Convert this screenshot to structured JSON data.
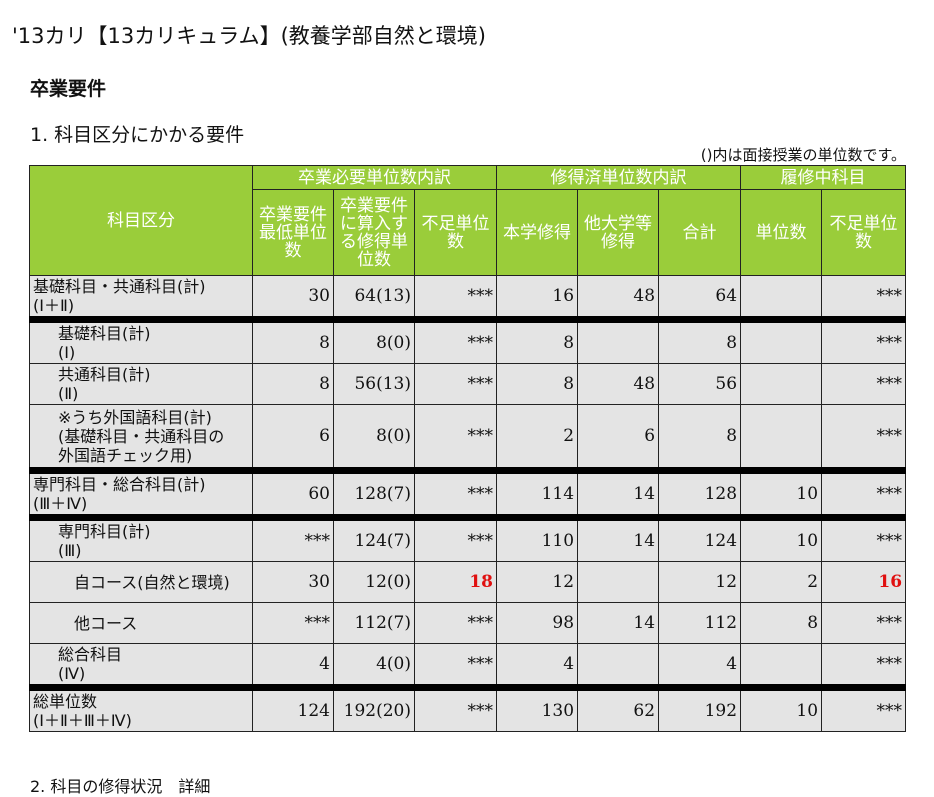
{
  "page": {
    "title": "'13カリ【13カリキュラム】(教養学部自然と環境)",
    "section_heading": "卒業要件",
    "subsection_heading": "1. 科目区分にかかる要件",
    "note": "()内は面接授業の単位数です。",
    "footer_cut": "2. 科目の修得状況　詳細"
  },
  "table": {
    "headers": {
      "category": "科目区分",
      "group_required": "卒業必要単位数内訳",
      "group_earned": "修得済単位数内訳",
      "group_current": "履修中科目",
      "min_units": "卒業要件最低単位数",
      "countable": "卒業要件に算入する修得単位数",
      "shortage": "不足単位数",
      "own_univ": "本学修得",
      "other_univ": "他大学等修得",
      "total": "合計",
      "units": "単位数",
      "shortage2": "不足単位数"
    },
    "rows": [
      {
        "label": "基礎科目・共通科目(計)\n(Ⅰ＋Ⅱ)",
        "min": "30",
        "count": "64(13)",
        "short": "***",
        "own": "16",
        "other": "48",
        "total": "64",
        "cur": "",
        "cur_short": "***"
      },
      {
        "label": "基礎科目(計)\n(Ⅰ)",
        "min": "8",
        "count": "8(0)",
        "short": "***",
        "own": "8",
        "other": "",
        "total": "8",
        "cur": "",
        "cur_short": "***"
      },
      {
        "label": "共通科目(計)\n(Ⅱ)",
        "min": "8",
        "count": "56(13)",
        "short": "***",
        "own": "8",
        "other": "48",
        "total": "56",
        "cur": "",
        "cur_short": "***"
      },
      {
        "label": "※うち外国語科目(計)\n(基礎科目・共通科目の\n外国語チェック用)",
        "min": "6",
        "count": "8(0)",
        "short": "***",
        "own": "2",
        "other": "6",
        "total": "8",
        "cur": "",
        "cur_short": "***"
      },
      {
        "label": "専門科目・総合科目(計)\n(Ⅲ＋Ⅳ)",
        "min": "60",
        "count": "128(7)",
        "short": "***",
        "own": "114",
        "other": "14",
        "total": "128",
        "cur": "10",
        "cur_short": "***"
      },
      {
        "label": "専門科目(計)\n(Ⅲ)",
        "min": "***",
        "count": "124(7)",
        "short": "***",
        "own": "110",
        "other": "14",
        "total": "124",
        "cur": "10",
        "cur_short": "***"
      },
      {
        "label": "自コース(自然と環境)",
        "min": "30",
        "count": "12(0)",
        "short": "18",
        "own": "12",
        "other": "",
        "total": "12",
        "cur": "2",
        "cur_short": "16"
      },
      {
        "label": "他コース",
        "min": "***",
        "count": "112(7)",
        "short": "***",
        "own": "98",
        "other": "14",
        "total": "112",
        "cur": "8",
        "cur_short": "***"
      },
      {
        "label": "総合科目\n(Ⅳ)",
        "min": "4",
        "count": "4(0)",
        "short": "***",
        "own": "4",
        "other": "",
        "total": "4",
        "cur": "",
        "cur_short": "***"
      },
      {
        "label": "総単位数\n(Ⅰ＋Ⅱ＋Ⅲ＋Ⅳ)",
        "min": "124",
        "count": "192(20)",
        "short": "***",
        "own": "130",
        "other": "62",
        "total": "192",
        "cur": "10",
        "cur_short": "***"
      }
    ]
  },
  "colors": {
    "header_bg": "#9acd3a",
    "cell_bg": "#e4e4e4",
    "alert": "#e01010"
  }
}
